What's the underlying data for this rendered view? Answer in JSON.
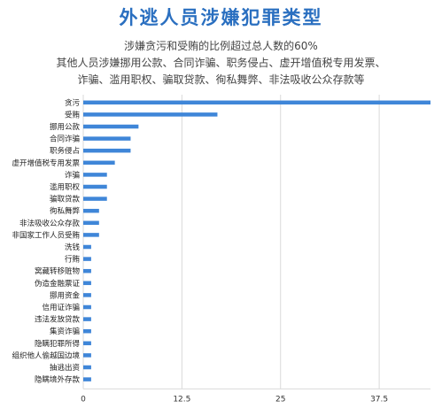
{
  "chart_data": {
    "type": "bar",
    "orientation": "horizontal",
    "title": "外逃人员涉嫌犯罪类型",
    "subtitle_lines": [
      "涉嫌贪污和受贿的比例超过总人数的60%",
      "其他人员涉嫌挪用公款、合同诈骗、职务侵占、虚开增值税专用发票、",
      "诈骗、滥用职权、骗取贷款、徇私舞弊、非法吸收公众存款等"
    ],
    "categories": [
      "贪污",
      "受贿",
      "挪用公款",
      "合同诈骗",
      "职务侵占",
      "虚开增值税专用发票",
      "诈骗",
      "滥用职权",
      "骗取贷款",
      "徇私舞弊",
      "非法吸收公众存款",
      "非国家工作人员受贿",
      "洗钱",
      "行贿",
      "窝藏转移赃物",
      "伪造金融票证",
      "挪用资金",
      "信用证诈骗",
      "违法发放贷款",
      "集资诈骗",
      "隐瞒犯罪所得",
      "组织他人偷越国边境",
      "抽逃出资",
      "隐瞒境外存款"
    ],
    "values": [
      44,
      17,
      7,
      6,
      6,
      4,
      3,
      3,
      3,
      2,
      2,
      2,
      1,
      1,
      1,
      1,
      1,
      1,
      1,
      1,
      1,
      1,
      1,
      1
    ],
    "x_ticks": [
      "0",
      "12.5",
      "25",
      "37.5"
    ],
    "xlim": [
      0,
      44
    ],
    "grid": true,
    "bar_color": "#3f86d8",
    "grid_color": "#d9d9d9"
  }
}
